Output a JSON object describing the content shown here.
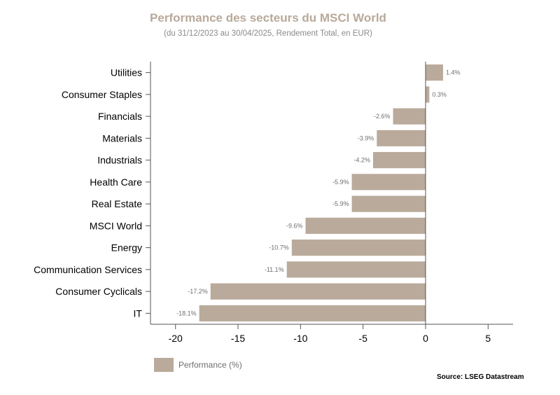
{
  "chart_data": {
    "type": "bar",
    "orientation": "horizontal",
    "title": "Performance des secteurs du MSCI World",
    "subtitle": "(du 31/12/2023 au 30/04/2025, Rendement Total, en EUR)",
    "categories": [
      "Utilities",
      "Consumer Staples",
      "Financials",
      "Materials",
      "Industrials",
      "Health Care",
      "Real Estate",
      "MSCI World",
      "Energy",
      "Communication Services",
      "Consumer Cyclicals",
      "IT"
    ],
    "series": [
      {
        "name": "Performance (%)",
        "values": [
          1.4,
          0.3,
          -2.6,
          -3.9,
          -4.2,
          -5.9,
          -5.9,
          -9.6,
          -10.7,
          -11.1,
          -17.2,
          -18.1
        ],
        "labels": [
          "1.4%",
          "0.3%",
          "-2.6%",
          "-3.9%",
          "-4.2%",
          "-5.9%",
          "-5.9%",
          "-9.6%",
          "-10.7%",
          "-11.1%",
          "-17.2%",
          "-18.1%"
        ],
        "color": "#b9aa9b"
      }
    ],
    "xlim": [
      -22,
      7
    ],
    "xticks": [
      -20,
      -15,
      -10,
      -5,
      0,
      5
    ],
    "xlabel": "",
    "ylabel": "",
    "grid": false,
    "legend": "bottom-left",
    "source": "Source: LSEG Datastream"
  }
}
